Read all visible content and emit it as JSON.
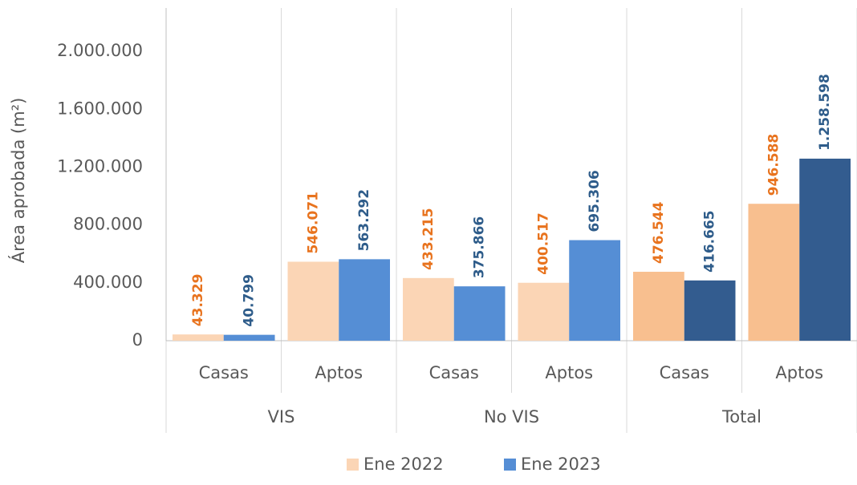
{
  "chart_data": {
    "type": "bar",
    "y_axis_label": "Área aprobada (m²)",
    "groups": [
      "VIS",
      "No VIS",
      "Total"
    ],
    "categories": [
      "Casas",
      "Aptos",
      "Casas",
      "Aptos",
      "Casas",
      "Aptos"
    ],
    "series": [
      {
        "name": "Ene 2022",
        "color": "#fbd5b5",
        "colors": [
          "#fbd5b5",
          "#fbd5b5",
          "#fbd5b5",
          "#fbd5b5",
          "#f8bf8f",
          "#f8bf8f"
        ],
        "label_color": "#e8731e",
        "values": [
          43329,
          546071,
          433215,
          400517,
          476544,
          946588
        ],
        "value_labels": [
          "43.329",
          "546.071",
          "433.215",
          "400.517",
          "476.544",
          "946.588"
        ]
      },
      {
        "name": "Ene 2023",
        "color": "#558ed5",
        "colors": [
          "#558ed5",
          "#558ed5",
          "#558ed5",
          "#558ed5",
          "#335c8f",
          "#335c8f"
        ],
        "label_color": "#2e5c8a",
        "values": [
          40799,
          563292,
          375866,
          695306,
          416665,
          1258598
        ],
        "value_labels": [
          "40.799",
          "563.292",
          "375.866",
          "695.306",
          "416.665",
          "1.258.598"
        ]
      }
    ],
    "ylim": [
      0,
      2300000
    ],
    "yticks": [
      0,
      {
        "value": 400000,
        "label": "400.000"
      },
      {
        "value": 800000,
        "label": "800.000"
      },
      {
        "value": 1200000,
        "label": "1.200.000"
      },
      {
        "value": 1600000,
        "label": "1.600.000"
      },
      {
        "value": 2000000,
        "label": "2.000.000"
      }
    ],
    "legend": "bottom"
  }
}
